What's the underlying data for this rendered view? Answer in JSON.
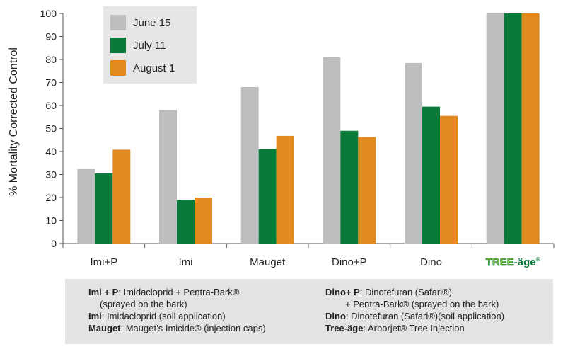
{
  "chart_data": {
    "type": "bar",
    "categories": [
      "Imi+P",
      "Imi",
      "Mauget",
      "Dino+P",
      "Dino",
      "TREE-äge"
    ],
    "series": [
      {
        "name": "June 15",
        "color": "#bdbec0",
        "values": [
          32.5,
          58,
          68,
          81,
          78.5,
          100
        ]
      },
      {
        "name": "July 11",
        "color": "#0a7a3a",
        "values": [
          30.5,
          19,
          41,
          49,
          59.5,
          100
        ]
      },
      {
        "name": "August 1",
        "color": "#e28a1f",
        "values": [
          40.8,
          20,
          46.8,
          46.3,
          55.5,
          100
        ]
      }
    ],
    "ylim": [
      0,
      100
    ],
    "yticks": [
      0,
      10,
      20,
      30,
      40,
      50,
      60,
      70,
      80,
      90,
      100
    ],
    "ylabel": "% Mortality Corrected Control",
    "xlabel": "",
    "legend_position": "top-left",
    "grid": false
  },
  "brand": {
    "tree_text": "TREE",
    "dash": "-",
    "age_text": "äge",
    "reg": "®",
    "tree_color": "#8dc63f",
    "age_color": "#0a7a3a"
  },
  "footnote": {
    "left": [
      {
        "bold": "Imi + P",
        "text": ": Imidacloprid + Pentra-Bark®"
      },
      {
        "bold": "",
        "text": "(sprayed on the bark)",
        "indent": true
      },
      {
        "bold": "Imi",
        "text": ": Imidacloprid (soil application)"
      },
      {
        "bold": "Mauget",
        "text": ": Mauget’s Imicide® (injection caps)"
      }
    ],
    "right": [
      {
        "bold": "Dino+ P",
        "text": ": Dinotefuran (Safari®)"
      },
      {
        "bold": "",
        "text": "+ Pentra-Bark® (sprayed on the bark)",
        "indent": true
      },
      {
        "bold": "Dino",
        "text": ": Dinotefuran (Safari®)(soil application)"
      },
      {
        "bold": "Tree-äge",
        "text": ": Arborjet® Tree Injection"
      }
    ]
  }
}
